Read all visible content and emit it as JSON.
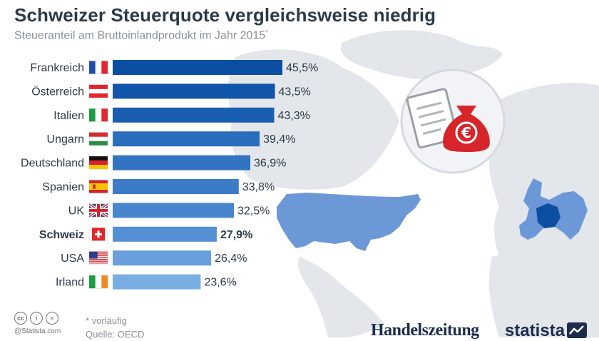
{
  "header": {
    "title": "Schweizer Steuerquote vergleichsweise niedrig",
    "subtitle": "Steueranteil am Bruttoinlandprodukt im Jahr 2015",
    "subtitle_marker": "*"
  },
  "footer": {
    "note": "* vorläufig",
    "source": "Quelle: OECD",
    "copyright": "@Statista.com",
    "cc_labels": [
      "cc",
      "i",
      "="
    ]
  },
  "brands": {
    "handelszeitung": "Handelszeitung",
    "statista": "statista"
  },
  "icons": {
    "document": "document-icon",
    "money_bag": "euro-money-bag-icon",
    "symbol": "€"
  },
  "colors": {
    "title": "#2c3a4a",
    "map": "#dfe3e8",
    "highlight_map": "#6c98d8",
    "bag": "#d7262b"
  },
  "chart_data": {
    "type": "bar",
    "orientation": "horizontal",
    "title": "Schweizer Steuerquote vergleichsweise niedrig",
    "subtitle": "Steueranteil am Bruttoinlandprodukt im Jahr 2015",
    "xlabel": "",
    "ylabel": "",
    "xlim": [
      0,
      50
    ],
    "grid": false,
    "legend": "none",
    "value_suffix": "%",
    "decimal_separator": ",",
    "highlight": "Schweiz",
    "categories": [
      "Frankreich",
      "Österreich",
      "Italien",
      "Ungarn",
      "Deutschland",
      "Spanien",
      "UK",
      "Schweiz",
      "USA",
      "Irland"
    ],
    "values": [
      45.5,
      43.5,
      43.3,
      39.4,
      36.9,
      33.8,
      32.5,
      27.9,
      26.4,
      23.6
    ],
    "bar_colors": [
      "#0b4ea2",
      "#1155aa",
      "#1a5eb2",
      "#2a6ebd",
      "#3374c2",
      "#3b7bc7",
      "#4785cc",
      "#5590d4",
      "#689fdc",
      "#7aaee3"
    ]
  }
}
